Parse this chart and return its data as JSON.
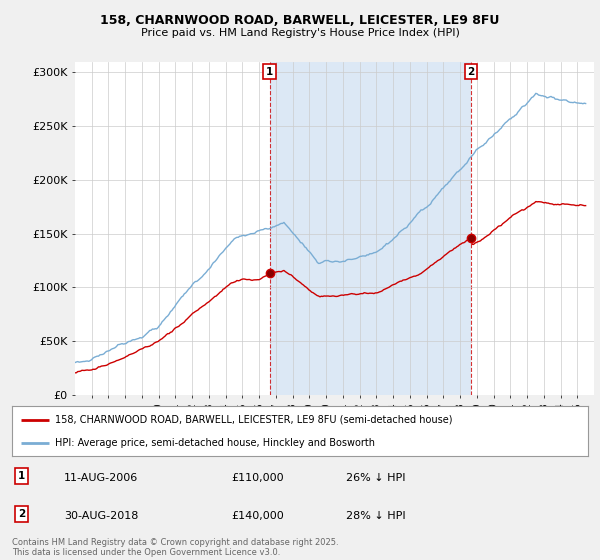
{
  "title1": "158, CHARNWOOD ROAD, BARWELL, LEICESTER, LE9 8FU",
  "title2": "Price paid vs. HM Land Registry's House Price Index (HPI)",
  "red_label": "158, CHARNWOOD ROAD, BARWELL, LEICESTER, LE9 8FU (semi-detached house)",
  "blue_label": "HPI: Average price, semi-detached house, Hinckley and Bosworth",
  "annotation1": {
    "num": "1",
    "date": "11-AUG-2006",
    "price": "£110,000",
    "pct": "26% ↓ HPI"
  },
  "annotation2": {
    "num": "2",
    "date": "30-AUG-2018",
    "price": "£140,000",
    "pct": "28% ↓ HPI"
  },
  "footer": "Contains HM Land Registry data © Crown copyright and database right 2025.\nThis data is licensed under the Open Government Licence v3.0.",
  "background_color": "#f0f0f0",
  "plot_background": "#ffffff",
  "shade_color": "#dce8f5",
  "red_color": "#cc0000",
  "blue_color": "#7aadd4",
  "ylim": [
    0,
    310000
  ],
  "yticks": [
    0,
    50000,
    100000,
    150000,
    200000,
    250000,
    300000
  ],
  "ytick_labels": [
    "£0",
    "£50K",
    "£100K",
    "£150K",
    "£200K",
    "£250K",
    "£300K"
  ],
  "sale1_year": 2006.62,
  "sale1_price": 110000,
  "sale2_year": 2018.66,
  "sale2_price": 140000,
  "xstart": 1995.0,
  "xend": 2025.5
}
